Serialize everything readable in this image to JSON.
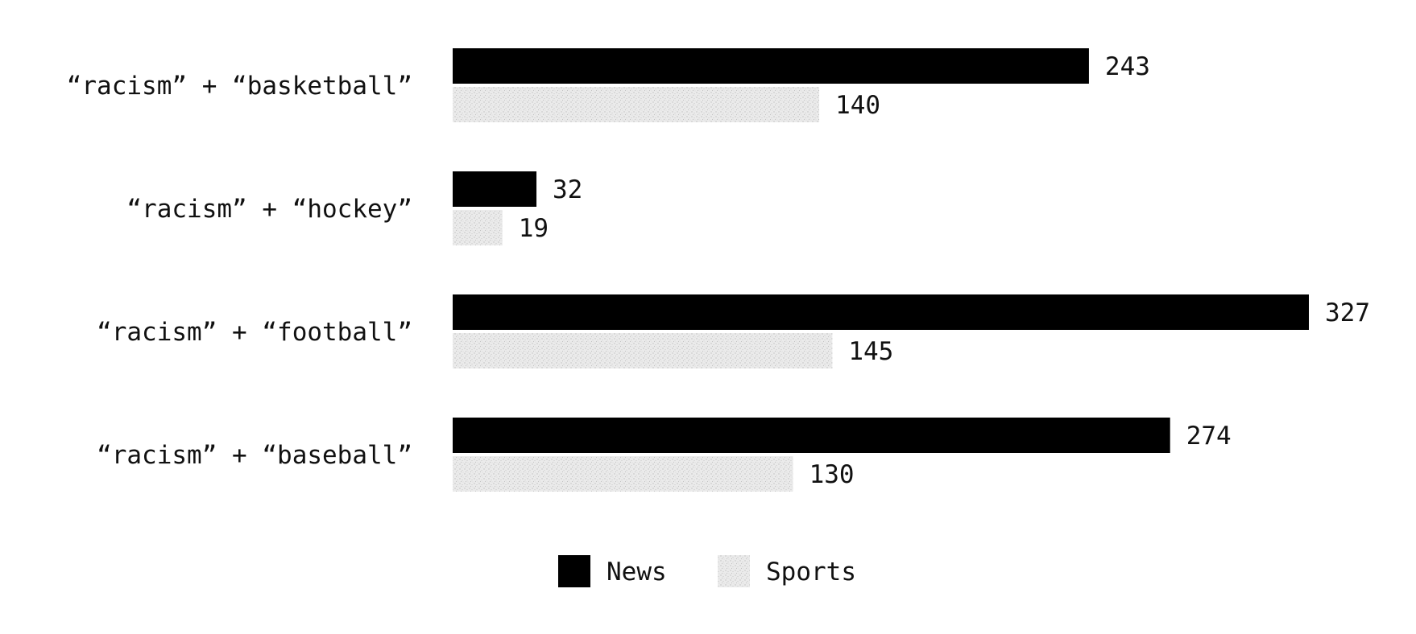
{
  "chart_data": {
    "type": "bar",
    "orientation": "horizontal",
    "categories": [
      "“racism” + “basketball”",
      "“racism” + “hockey”",
      "“racism” + “football”",
      "“racism” + “baseball”"
    ],
    "series": [
      {
        "name": "News",
        "values": [
          243,
          32,
          327,
          274
        ],
        "color": "#000000"
      },
      {
        "name": "Sports",
        "values": [
          140,
          19,
          145,
          130
        ],
        "color": "#e4e4e4",
        "pattern": "stipple"
      }
    ],
    "xlim": [
      0,
      327
    ],
    "grid": false,
    "legend_position": "bottom",
    "data_labels": true
  }
}
